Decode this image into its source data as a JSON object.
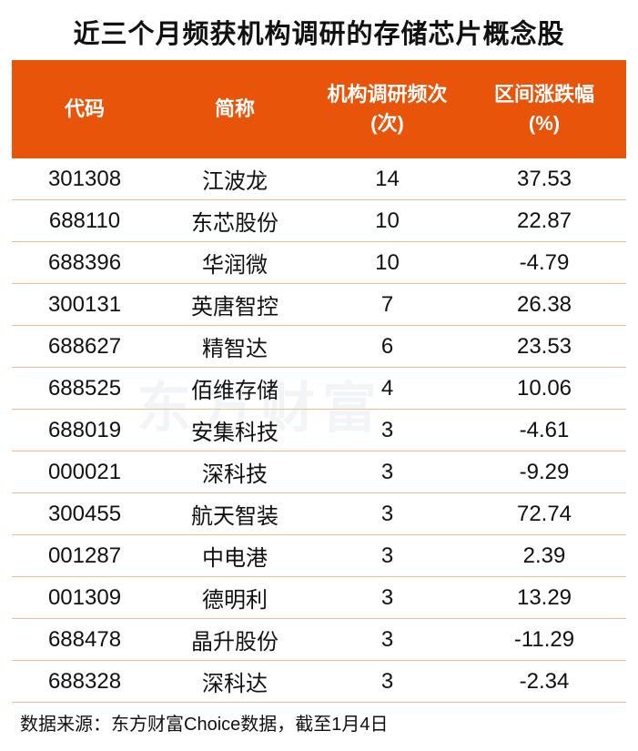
{
  "title": "近三个月频获机构调研的存储芯片概念股",
  "watermark": "东方财富",
  "chart_data": {
    "type": "table",
    "headers": [
      "代码",
      "简称",
      "机构调研频次\n(次)",
      "区间涨跌幅\n(%)"
    ],
    "header_lines": [
      [
        "代码"
      ],
      [
        "简称"
      ],
      [
        "机构调研频次",
        "(次)"
      ],
      [
        "区间涨跌幅",
        "(%)"
      ]
    ],
    "rows": [
      [
        "301308",
        "江波龙",
        "14",
        "37.53"
      ],
      [
        "688110",
        "东芯股份",
        "10",
        "22.87"
      ],
      [
        "688396",
        "华润微",
        "10",
        "-4.79"
      ],
      [
        "300131",
        "英唐智控",
        "7",
        "26.38"
      ],
      [
        "688627",
        "精智达",
        "6",
        "23.53"
      ],
      [
        "688525",
        "佰维存储",
        "4",
        "10.06"
      ],
      [
        "688019",
        "安集科技",
        "3",
        "-4.61"
      ],
      [
        "000021",
        "深科技",
        "3",
        "-9.29"
      ],
      [
        "300455",
        "航天智装",
        "3",
        "72.74"
      ],
      [
        "001287",
        "中电港",
        "3",
        "2.39"
      ],
      [
        "001309",
        "德明利",
        "3",
        "13.29"
      ],
      [
        "688478",
        "晶升股份",
        "3",
        "-11.29"
      ],
      [
        "688328",
        "深科达",
        "3",
        "-2.34"
      ]
    ],
    "header_color": "#E8540A",
    "row_line_color": "#F7B98E"
  },
  "source": "数据来源：东方财富Choice数据，截至1月4日"
}
